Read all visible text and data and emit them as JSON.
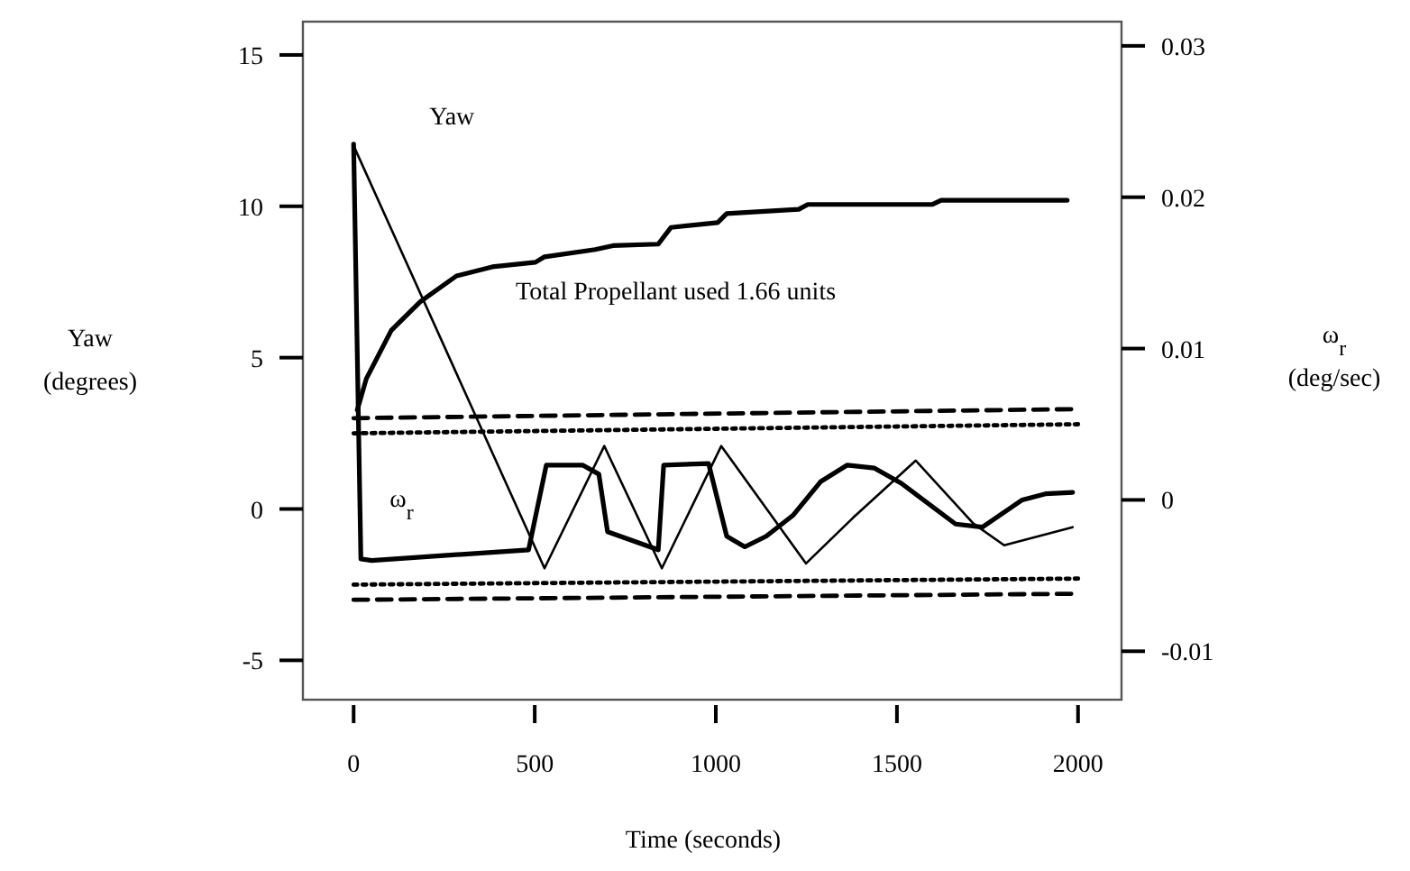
{
  "chart_data": {
    "type": "line",
    "xlabel": "Time (seconds)",
    "ylabel": "Yaw (degrees)",
    "y2label": "ω$_{r}$ (deg/sec)",
    "annotations": [
      "Total  Propellant used 1.66 units"
    ],
    "xlim": [
      -140,
      2120
    ],
    "xticks": [
      0,
      500,
      1000,
      1500,
      2000
    ],
    "ylim": [
      -6.3,
      16.1
    ],
    "yticks": [
      -5,
      0,
      5,
      10,
      15
    ],
    "y2lim": [
      -0.0132,
      0.0316
    ],
    "y2ticks": [
      -0.01,
      0,
      0.01,
      0.02,
      0.03
    ],
    "grid": false,
    "legend": false,
    "marker": "none",
    "line_style": "solid",
    "series": [
      {
        "name": "Yaw",
        "color": "#000000",
        "x": [
          0,
          527,
          692,
          851,
          1015,
          1249,
          1378,
          1552,
          1711,
          1796,
          1985
        ],
        "values": [
          12.0,
          -1.96,
          2.08,
          -1.96,
          2.08,
          -1.8,
          -0.3,
          1.6,
          -0.48,
          -1.2,
          -0.6
        ]
      },
      {
        "name": "ω$_{r}$",
        "color": "#000000",
        "axis": "y2",
        "x": [
          0,
          20,
          50,
          483,
          532,
          632,
          677,
          701,
          841,
          856,
          980,
          1030,
          1080,
          1139,
          1214,
          1289,
          1363,
          1438,
          1512,
          1662,
          1736,
          1846,
          1910,
          1985
        ],
        "values": [
          0.0235,
          -0.0039,
          -0.004,
          -0.0033,
          0.0023,
          0.0023,
          0.0017,
          -0.0021,
          -0.0033,
          0.0023,
          0.0024,
          -0.0024,
          -0.0031,
          -0.0024,
          -0.001,
          0.0012,
          0.0023,
          0.0021,
          0.0011,
          -0.0016,
          -0.0018,
          0.0,
          0.0004,
          0.0005
        ]
      },
      {
        "color": "#000000",
        "x": [
          10,
          35,
          104,
          184,
          284,
          383,
          502,
          527,
          667,
          716,
          841,
          876,
          1005,
          1030,
          1229,
          1254,
          1597,
          1622,
          1970
        ],
        "values": [
          3.27,
          4.3,
          5.9,
          6.85,
          7.7,
          8.0,
          8.15,
          8.33,
          8.57,
          8.7,
          8.75,
          9.3,
          9.46,
          9.76,
          9.9,
          10.06,
          10.06,
          10.2,
          10.2
        ]
      },
      {
        "color": "#000000",
        "line_style": "dashed",
        "x": [
          0,
          2000
        ],
        "values": [
          3.0,
          3.3
        ]
      },
      {
        "color": "#000000",
        "line_style": "dotted",
        "x": [
          0,
          2000
        ],
        "values": [
          2.5,
          2.8
        ]
      },
      {
        "color": "#000000",
        "line_style": "dotted",
        "x": [
          0,
          2000
        ],
        "values": [
          -2.5,
          -2.3
        ]
      },
      {
        "color": "#000000",
        "line_style": "dashed",
        "x": [
          0,
          2000
        ],
        "values": [
          -3.0,
          -2.8
        ]
      }
    ]
  }
}
